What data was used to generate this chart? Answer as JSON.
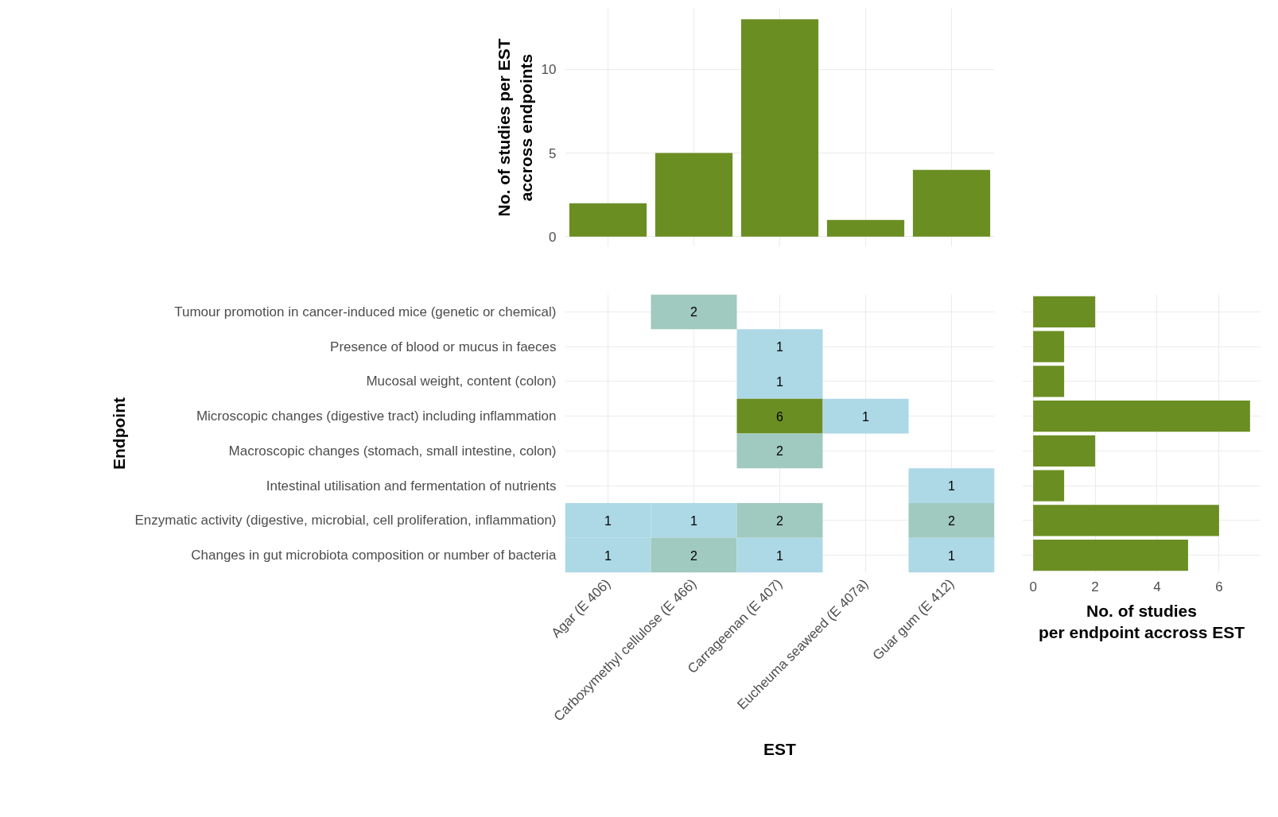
{
  "chart_data": [
    {
      "type": "bar",
      "categories": [
        null,
        null,
        null,
        null,
        null
      ],
      "values": [
        2,
        5,
        13,
        1,
        4
      ],
      "color": "#6b8e23",
      "ylim": [
        -0.6,
        13.65
      ],
      "yticks": [
        0,
        5,
        10
      ],
      "ylabel": "No. of studies per EST\naccross endpoints",
      "grid": true,
      "tick_labels": "y"
    },
    {
      "type": "heatmap",
      "categories": [
        "Agar (E 406)",
        "Carboxymethyl cellulose (E 466)",
        "Carrageenan (E 407)",
        "Eucheuma seaweed (E 407a)",
        "Guar gum (E 412)"
      ],
      "y_categories": [
        "Tumour promotion in cancer-induced mice (genetic or chemical)",
        "Presence of blood or mucus in faeces",
        "Mucosal weight, content (colon)",
        "Microscopic changes (digestive tract) including inflammation",
        "Macroscopic changes (stomach, small intestine, colon)",
        "Intestinal utilisation and fermentation of nutrients",
        "Enzymatic activity (digestive, microbial, cell proliferation, inflammation)",
        "Changes in gut microbiota composition or number of bacteria"
      ],
      "cells": [
        [
          null,
          2,
          null,
          null,
          null
        ],
        [
          null,
          null,
          1,
          null,
          null
        ],
        [
          null,
          null,
          1,
          null,
          null
        ],
        [
          null,
          null,
          6,
          1,
          null
        ],
        [
          null,
          null,
          2,
          null,
          null
        ],
        [
          null,
          null,
          null,
          null,
          1
        ],
        [
          1,
          1,
          2,
          null,
          2
        ],
        [
          1,
          2,
          1,
          null,
          1
        ]
      ],
      "colors": [
        "#add8e6",
        "#6b8e23"
      ],
      "xlabel": "EST",
      "ylabel": "Endpoint",
      "data_labels": true,
      "grid": true
    },
    {
      "type": "bar",
      "orientation": "horizontal",
      "categories": [
        null,
        null,
        null,
        null,
        null,
        null,
        null,
        null
      ],
      "values": [
        2,
        1,
        1,
        7,
        2,
        1,
        6,
        5
      ],
      "color": "#6b8e23",
      "xlim": [
        -0.35,
        7.35
      ],
      "xticks": [
        0,
        2,
        4,
        6
      ],
      "xlabel": "No. of studies\nper endpoint accross EST",
      "grid": true,
      "tick_labels": "x"
    }
  ]
}
